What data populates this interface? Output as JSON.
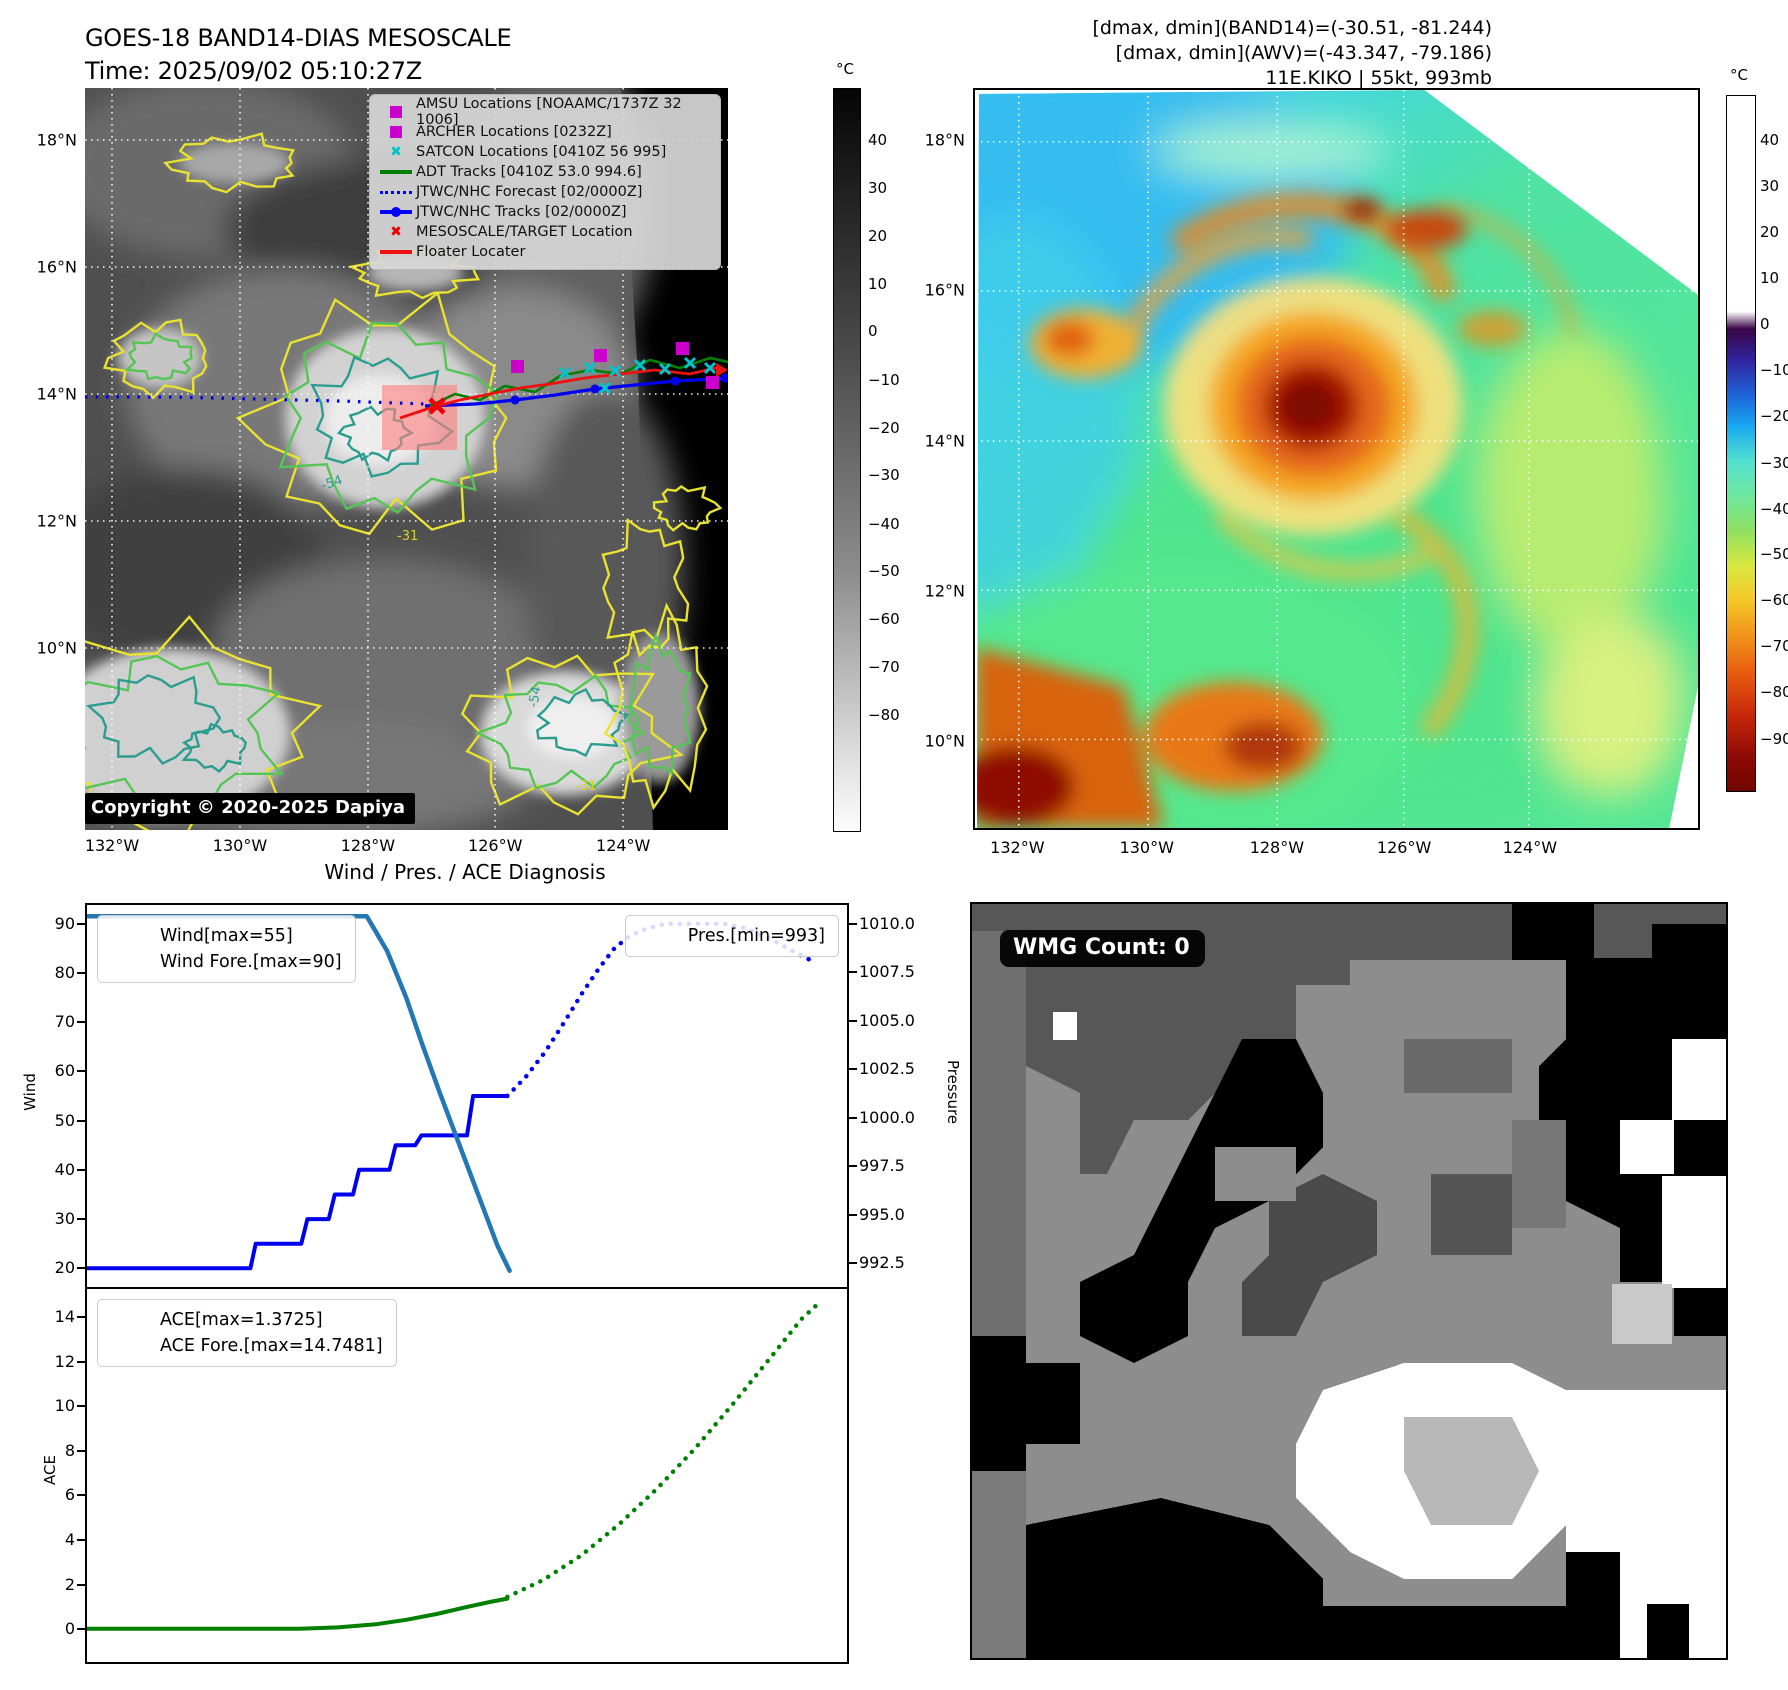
{
  "figure": {
    "title_line1": "GOES-18 BAND14-DIAS MESOSCALE",
    "title_line2": "Time: 2025/09/02 05:10:27Z",
    "info_line1": "[dmax, dmin](BAND14)=(-30.51, -81.244)",
    "info_line2": "[dmax, dmin](AWV)=(-43.347, -79.186)",
    "info_line3": "11E.KIKO | 55kt, 993mb"
  },
  "map_left": {
    "copyright": "Copyright © 2020-2025 Dapiya",
    "contour_inner_label": "-54",
    "contour_outer_label": "-31",
    "legend": [
      {
        "marker": "square",
        "color": "#cc00cc",
        "label": "AMSU Locations [NOAAMC/1737Z 32 1006]"
      },
      {
        "marker": "square",
        "color": "#cc00cc",
        "label": "ARCHER Locations [0232Z]"
      },
      {
        "marker": "x",
        "color": "#00c5cd",
        "label": "SATCON Locations [0410Z 56 995]"
      },
      {
        "marker": "line",
        "color": "#008000",
        "label": "ADT Tracks [0410Z 53.0 994.6]"
      },
      {
        "marker": "dotted",
        "color": "#0000ff",
        "label": "JTWC/NHC Forecast [02/0000Z]"
      },
      {
        "marker": "linedot",
        "color": "#0000ff",
        "label": "JTWC/NHC Tracks [02/0000Z]"
      },
      {
        "marker": "x",
        "color": "#ee0000",
        "label": "MESOSCALE/TARGET Location"
      },
      {
        "marker": "line",
        "color": "#ee1111",
        "label": "Floater Locater"
      }
    ],
    "lat_ticks": [
      {
        "label": "18°N",
        "pos": 0.07
      },
      {
        "label": "16°N",
        "pos": 0.241
      },
      {
        "label": "14°N",
        "pos": 0.412
      },
      {
        "label": "12°N",
        "pos": 0.584
      },
      {
        "label": "10°N",
        "pos": 0.755
      }
    ],
    "lon_ticks": [
      {
        "label": "132°W",
        "pos": 0.042
      },
      {
        "label": "130°W",
        "pos": 0.241
      },
      {
        "label": "128°W",
        "pos": 0.44
      },
      {
        "label": "126°W",
        "pos": 0.638
      },
      {
        "label": "124°W",
        "pos": 0.837
      }
    ],
    "colorbar": {
      "unit": "°C",
      "ticks": [
        {
          "label": "40",
          "pos": 0.07
        },
        {
          "label": "30",
          "pos": 0.135
        },
        {
          "label": "20",
          "pos": 0.199
        },
        {
          "label": "10",
          "pos": 0.264
        },
        {
          "label": "0",
          "pos": 0.328
        },
        {
          "label": "−10",
          "pos": 0.393
        },
        {
          "label": "−20",
          "pos": 0.458
        },
        {
          "label": "−30",
          "pos": 0.522
        },
        {
          "label": "−40",
          "pos": 0.587
        },
        {
          "label": "−50",
          "pos": 0.651
        },
        {
          "label": "−60",
          "pos": 0.716
        },
        {
          "label": "−70",
          "pos": 0.78
        },
        {
          "label": "−80",
          "pos": 0.845
        }
      ]
    }
  },
  "map_right": {
    "lat_ticks": [
      {
        "label": "18°N",
        "pos": 0.07
      },
      {
        "label": "16°N",
        "pos": 0.272
      },
      {
        "label": "14°N",
        "pos": 0.476
      },
      {
        "label": "12°N",
        "pos": 0.678
      },
      {
        "label": "10°N",
        "pos": 0.88
      }
    ],
    "lon_ticks": [
      {
        "label": "132°W",
        "pos": 0.061
      },
      {
        "label": "130°W",
        "pos": 0.239
      },
      {
        "label": "128°W",
        "pos": 0.418
      },
      {
        "label": "126°W",
        "pos": 0.593
      },
      {
        "label": "124°W",
        "pos": 0.766
      }
    ],
    "colorbar": {
      "unit": "°C",
      "ticks": [
        {
          "label": "40",
          "pos": 0.065
        },
        {
          "label": "30",
          "pos": 0.131
        },
        {
          "label": "20",
          "pos": 0.197
        },
        {
          "label": "10",
          "pos": 0.264
        },
        {
          "label": "0",
          "pos": 0.33
        },
        {
          "label": "−10",
          "pos": 0.396
        },
        {
          "label": "−20",
          "pos": 0.462
        },
        {
          "label": "−30",
          "pos": 0.529
        },
        {
          "label": "−40",
          "pos": 0.595
        },
        {
          "label": "−50",
          "pos": 0.661
        },
        {
          "label": "−60",
          "pos": 0.727
        },
        {
          "label": "−70",
          "pos": 0.793
        },
        {
          "label": "−80",
          "pos": 0.859
        },
        {
          "label": "−90",
          "pos": 0.926
        }
      ]
    }
  },
  "wmg": {
    "badge": "WMG Count: 0"
  },
  "chart_data": [
    {
      "type": "line",
      "title": "Wind / Pres. / ACE Diagnosis",
      "ylabel_left": "Wind",
      "ylabel_right": "Pressure",
      "ylim_left": [
        16.2,
        93.8
      ],
      "ylim_right": [
        991.26,
        1010.98
      ],
      "yticks_left": [
        {
          "value": 90,
          "label": "90"
        },
        {
          "value": 80,
          "label": "80"
        },
        {
          "value": 70,
          "label": "70"
        },
        {
          "value": 60,
          "label": "60"
        },
        {
          "value": 50,
          "label": "50"
        },
        {
          "value": 40,
          "label": "40"
        },
        {
          "value": 30,
          "label": "30"
        },
        {
          "value": 20,
          "label": "20"
        }
      ],
      "yticks_right": [
        {
          "value": 1010.0,
          "label": "1010.0"
        },
        {
          "value": 1007.5,
          "label": "1007.5"
        },
        {
          "value": 1005.0,
          "label": "1005.0"
        },
        {
          "value": 1002.5,
          "label": "1002.5"
        },
        {
          "value": 1000.0,
          "label": "1000.0"
        },
        {
          "value": 997.5,
          "label": "997.5"
        },
        {
          "value": 995.0,
          "label": "995.0"
        },
        {
          "value": 992.5,
          "label": "992.5"
        }
      ],
      "legend_tl": [
        {
          "label": "Wind[max=55]",
          "style": "solid",
          "color": "#0000ee"
        },
        {
          "label": "Wind Fore.[max=90]",
          "style": "dotted",
          "color": "#0000ee"
        }
      ],
      "legend_tr": [
        {
          "label": "Pres.[min=993]",
          "style": "solid",
          "color": "#2277b4"
        }
      ],
      "series": [
        {
          "name": "Wind[max=55]",
          "axis": "left",
          "style": "solid",
          "color": "#0000ee",
          "width": 4,
          "x": [
            0.0,
            0.215,
            0.222,
            0.282,
            0.29,
            0.318,
            0.326,
            0.35,
            0.358,
            0.398,
            0.406,
            0.432,
            0.44,
            0.5,
            0.508,
            0.553
          ],
          "y": [
            20,
            20,
            25,
            25,
            30,
            30,
            35,
            35,
            40,
            40,
            45,
            45,
            47,
            47,
            55,
            55
          ]
        },
        {
          "name": "Wind Fore.[max=90]",
          "axis": "left",
          "style": "dotted",
          "color": "#0000ee",
          "width": 4.5,
          "x": [
            0.553,
            0.578,
            0.603,
            0.628,
            0.652,
            0.674,
            0.694,
            0.714,
            0.736,
            0.762,
            0.8,
            0.838,
            0.868,
            0.898,
            0.928,
            0.953
          ],
          "y": [
            55,
            59,
            64,
            70,
            76,
            81,
            85,
            87.5,
            89,
            90,
            90,
            90,
            89,
            87,
            84.5,
            82.5
          ]
        },
        {
          "name": "Pres.[min=993]",
          "axis": "right",
          "style": "solid",
          "color": "#2277b4",
          "width": 4.5,
          "x": [
            0.0,
            0.368,
            0.395,
            0.42,
            0.441,
            0.465,
            0.49,
            0.515,
            0.54,
            0.556
          ],
          "y": [
            1010.4,
            1010.4,
            1008.6,
            1006.2,
            1003.8,
            1001.2,
            998.6,
            996.0,
            993.4,
            992.1
          ]
        }
      ]
    },
    {
      "type": "line",
      "ylabel_left": "ACE",
      "ylim_left": [
        -1.47,
        15.25
      ],
      "yticks_left": [
        {
          "value": 14,
          "label": "14"
        },
        {
          "value": 12,
          "label": "12"
        },
        {
          "value": 10,
          "label": "10"
        },
        {
          "value": 8,
          "label": "8"
        },
        {
          "value": 6,
          "label": "6"
        },
        {
          "value": 4,
          "label": "4"
        },
        {
          "value": 2,
          "label": "2"
        },
        {
          "value": 0,
          "label": "0"
        }
      ],
      "legend_tl": [
        {
          "label": "ACE[max=1.3725]",
          "style": "solid",
          "color": "#008000"
        },
        {
          "label": "ACE Fore.[max=14.7481]",
          "style": "dotted",
          "color": "#008000"
        }
      ],
      "legend_tr": [],
      "yticks_right": [],
      "series": [
        {
          "name": "ACE[max=1.3725]",
          "axis": "left",
          "style": "solid",
          "color": "#008000",
          "width": 4,
          "x": [
            0.0,
            0.28,
            0.33,
            0.38,
            0.42,
            0.46,
            0.5,
            0.53,
            0.553
          ],
          "y": [
            0.02,
            0.02,
            0.08,
            0.22,
            0.42,
            0.68,
            1.0,
            1.22,
            1.3725
          ]
        },
        {
          "name": "ACE Fore.[max=14.7481]",
          "axis": "left",
          "style": "dotted",
          "color": "#008000",
          "width": 4.5,
          "x": [
            0.553,
            0.6,
            0.65,
            0.7,
            0.75,
            0.8,
            0.85,
            0.9,
            0.94,
            0.967
          ],
          "y": [
            1.45,
            2.2,
            3.3,
            4.7,
            6.3,
            8.1,
            10.1,
            12.2,
            13.9,
            14.7481
          ]
        }
      ]
    }
  ]
}
